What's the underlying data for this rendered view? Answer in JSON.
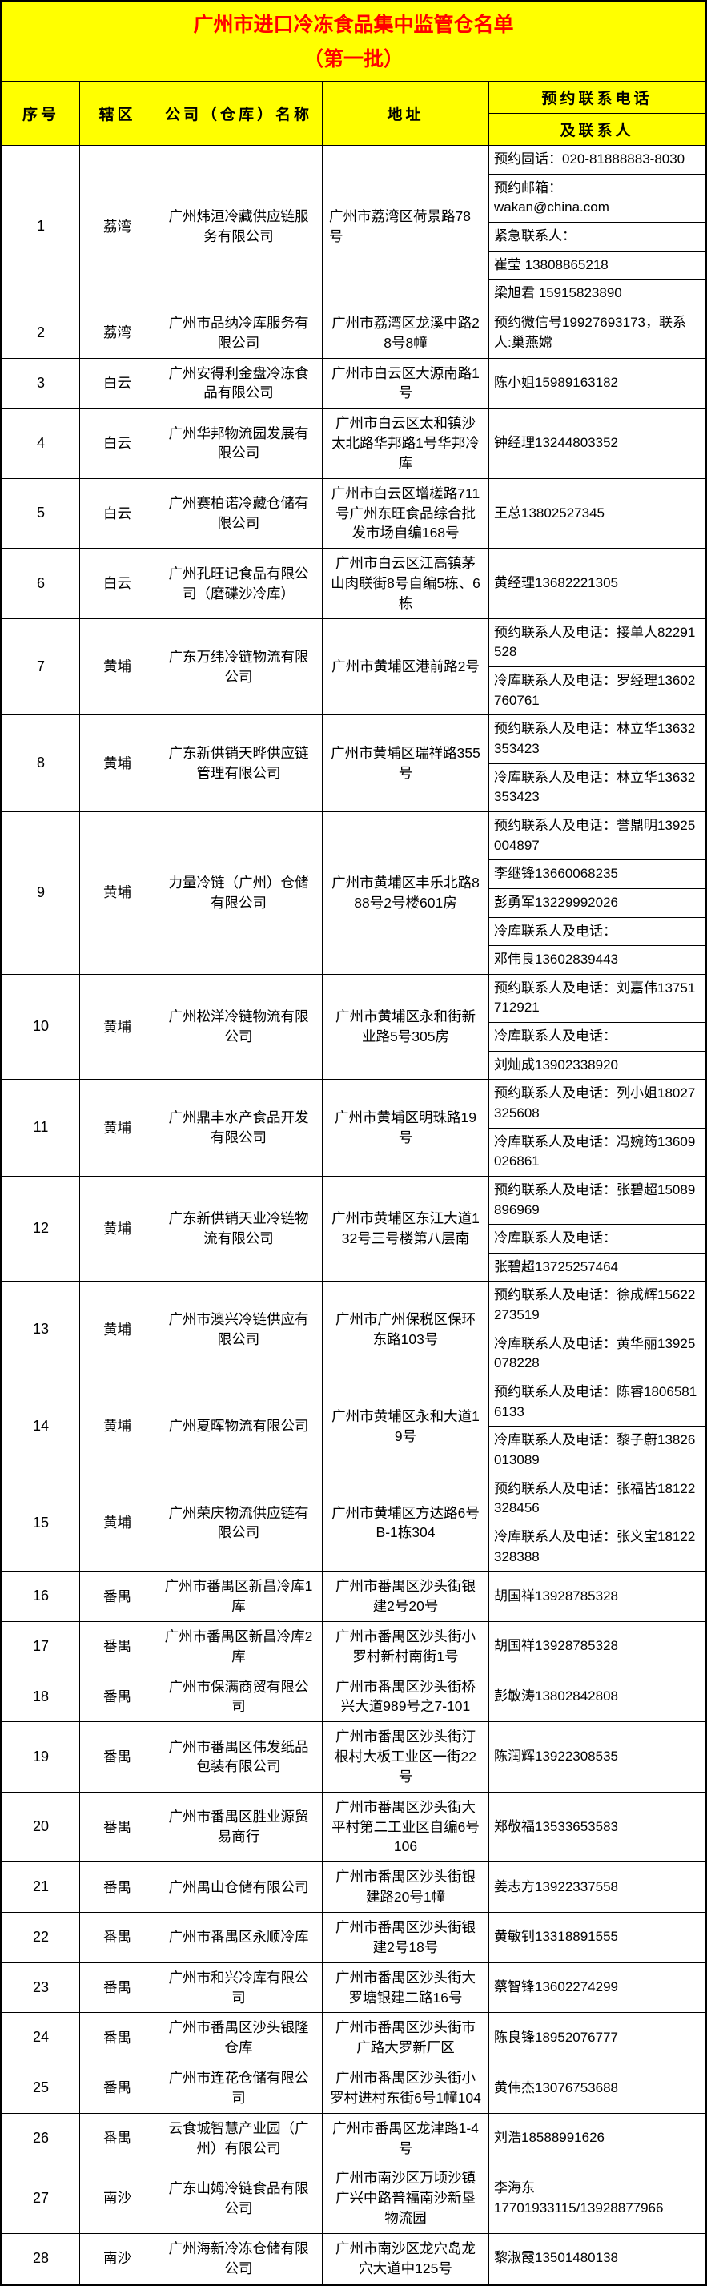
{
  "title": {
    "line1": "广州市进口冷冻食品集中监管仓名单",
    "line2": "（第一批）"
  },
  "columns": {
    "no": "序号",
    "district": "辖区",
    "company": "公司（仓库）名称",
    "address": "地址",
    "contact_line1": "预约联系电话",
    "contact_line2": "及联系人"
  },
  "colors": {
    "header_bg": "#FFFF00",
    "title_text": "#FF0000",
    "border": "#000000",
    "body_bg": "#FFFFFF",
    "body_text": "#000000"
  },
  "rows": [
    {
      "no": "1",
      "district": "荔湾",
      "company": "广州炜洹冷藏供应链服务有限公司",
      "address": "广州市荔湾区荷景路78号",
      "addr_align": "left",
      "contacts": [
        "预约固话：020-81888883-8030",
        "预约邮箱：\nwakan@china.com",
        "紧急联系人：",
        "崔莹 13808865218",
        "梁旭君 15915823890"
      ]
    },
    {
      "no": "2",
      "district": "荔湾",
      "company": "广州市品纳冷库服务有限公司",
      "address": "广州市荔湾区龙溪中路28号8幢",
      "contacts": [
        "预约微信号19927693173，联系人:巢燕嫦"
      ]
    },
    {
      "no": "3",
      "district": "白云",
      "company": "广州安得利金盘冷冻食品有限公司",
      "address": "广州市白云区大源南路1号",
      "contacts": [
        "陈小姐15989163182"
      ]
    },
    {
      "no": "4",
      "district": "白云",
      "company": "广州华邦物流园发展有限公司",
      "address": "广州市白云区太和镇沙太北路华邦路1号华邦冷库",
      "contacts": [
        "钟经理13244803352"
      ]
    },
    {
      "no": "5",
      "district": "白云",
      "company": "广州赛柏诺冷藏仓储有限公司",
      "address": "广州市白云区增槎路711号广州东旺食品综合批发市场自编168号",
      "contacts": [
        "王总13802527345"
      ]
    },
    {
      "no": "6",
      "district": "白云",
      "company": "广州孔旺记食品有限公司（磨碟沙冷库）",
      "address": "广州市白云区江高镇茅山肉联街8号自编5栋、6栋",
      "contacts": [
        "黄经理13682221305"
      ]
    },
    {
      "no": "7",
      "district": "黄埔",
      "company": "广东万纬冷链物流有限公司",
      "address": "广州市黄埔区港前路2号",
      "contacts": [
        "预约联系人及电话：接单人82291528",
        "冷库联系人及电话：罗经理13602760761"
      ]
    },
    {
      "no": "8",
      "district": "黄埔",
      "company": "广东新供销天晔供应链管理有限公司",
      "address": "广州市黄埔区瑞祥路355号",
      "contacts": [
        "预约联系人及电话：林立华13632353423",
        "冷库联系人及电话：林立华13632353423"
      ]
    },
    {
      "no": "9",
      "district": "黄埔",
      "company": "力量冷链（广州）仓储有限公司",
      "address": "广州市黄埔区丰乐北路888号2号楼601房",
      "contacts": [
        "预约联系人及电话：誉鼎明13925004897",
        "李继锋13660068235",
        "彭勇军13229992026",
        "冷库联系人及电话：",
        "邓伟良13602839443"
      ]
    },
    {
      "no": "10",
      "district": "黄埔",
      "company": "广州松洋冷链物流有限公司",
      "address": "广州市黄埔区永和街新业路5号305房",
      "contacts": [
        "预约联系人及电话：刘嘉伟13751712921",
        "冷库联系人及电话：",
        "刘灿成13902338920"
      ]
    },
    {
      "no": "11",
      "district": "黄埔",
      "company": "广州鼎丰水产食品开发有限公司",
      "address": "广州市黄埔区明珠路19号",
      "contacts": [
        "预约联系人及电话：列小姐18027325608",
        "冷库联系人及电话：冯婉筠13609026861"
      ]
    },
    {
      "no": "12",
      "district": "黄埔",
      "company": "广东新供销天业冷链物流有限公司",
      "address": "广州市黄埔区东江大道132号三号楼第八层南",
      "contacts": [
        "预约联系人及电话：张碧超15089896969",
        "冷库联系人及电话：",
        "张碧超13725257464"
      ]
    },
    {
      "no": "13",
      "district": "黄埔",
      "company": "广州市澳兴冷链供应有限公司",
      "address": "广州市广州保税区保环东路103号",
      "contacts": [
        "预约联系人及电话：徐成辉15622273519",
        "冷库联系人及电话：黄华丽13925078228"
      ]
    },
    {
      "no": "14",
      "district": "黄埔",
      "company": "广州夏晖物流有限公司",
      "address": "广州市黄埔区永和大道19号",
      "contacts": [
        "预约联系人及电话：陈睿18065816133",
        "冷库联系人及电话：黎子蔚13826013089"
      ]
    },
    {
      "no": "15",
      "district": "黄埔",
      "company": "广州荣庆物流供应链有限公司",
      "address": "广州市黄埔区方达路6号B-1栋304",
      "contacts": [
        "预约联系人及电话：张福皆18122328456",
        "冷库联系人及电话：张义宝18122328388"
      ]
    },
    {
      "no": "16",
      "district": "番禺",
      "company": "广州市番禺区新昌冷库1库",
      "address": "广州市番禺区沙头街银建2号20号",
      "contacts": [
        "胡国祥13928785328"
      ]
    },
    {
      "no": "17",
      "district": "番禺",
      "company": "广州市番禺区新昌冷库2库",
      "address": "广州市番禺区沙头街小罗村新村南街1号",
      "contacts": [
        "胡国祥13928785328"
      ]
    },
    {
      "no": "18",
      "district": "番禺",
      "company": "广州市保满商贸有限公司",
      "address": "广州市番禺区沙头街桥兴大道989号之7-101",
      "contacts": [
        "彭敏涛13802842808"
      ]
    },
    {
      "no": "19",
      "district": "番禺",
      "company": "广州市番禺区伟发纸品包装有限公司",
      "address": "广州市番禺区沙头街汀根村大板工业区一街22号",
      "contacts": [
        "陈润辉13922308535"
      ]
    },
    {
      "no": "20",
      "district": "番禺",
      "company": "广州市番禺区胜业源贸易商行",
      "address": "广州市番禺区沙头街大平村第二工业区自编6号106",
      "contacts": [
        "郑敬福13533653583"
      ]
    },
    {
      "no": "21",
      "district": "番禺",
      "company": "广州禺山仓储有限公司",
      "address": "广州市番禺区沙头街银建路20号1幢",
      "contacts": [
        "姜志方13922337558"
      ]
    },
    {
      "no": "22",
      "district": "番禺",
      "company": "广州市番禺区永顺冷库",
      "address": "广州市番禺区沙头街银建2号18号",
      "contacts": [
        "黄敏钊13318891555"
      ]
    },
    {
      "no": "23",
      "district": "番禺",
      "company": "广州市和兴冷库有限公司",
      "address": "广州市番禺区沙头街大罗塘银建二路16号",
      "contacts": [
        "蔡智锋13602274299"
      ]
    },
    {
      "no": "24",
      "district": "番禺",
      "company": "广州市番禺区沙头银隆仓库",
      "address": "广州市番禺区沙头街市广路大罗新厂区",
      "contacts": [
        "陈良锋18952076777"
      ]
    },
    {
      "no": "25",
      "district": "番禺",
      "company": "广州市连花仓储有限公司",
      "address": "广州市番禺区沙头街小罗村进村东街6号1幢104",
      "contacts": [
        "黄伟杰13076753688"
      ]
    },
    {
      "no": "26",
      "district": "番禺",
      "company": "云食城智慧产业园（广州）有限公司",
      "address": "广州市番禺区龙津路1-4号",
      "contacts": [
        "刘浩18588991626"
      ]
    },
    {
      "no": "27",
      "district": "南沙",
      "company": "广东山姆冷链食品有限公司",
      "address": "广州市南沙区万顷沙镇广兴中路普福南沙新垦物流园",
      "contacts": [
        "李海东\n17701933115/13928877966"
      ]
    },
    {
      "no": "28",
      "district": "南沙",
      "company": "广州海新冷冻仓储有限公司",
      "address": "广州市南沙区龙穴岛龙穴大道中125号",
      "contacts": [
        "黎淑霞13501480138"
      ]
    }
  ]
}
